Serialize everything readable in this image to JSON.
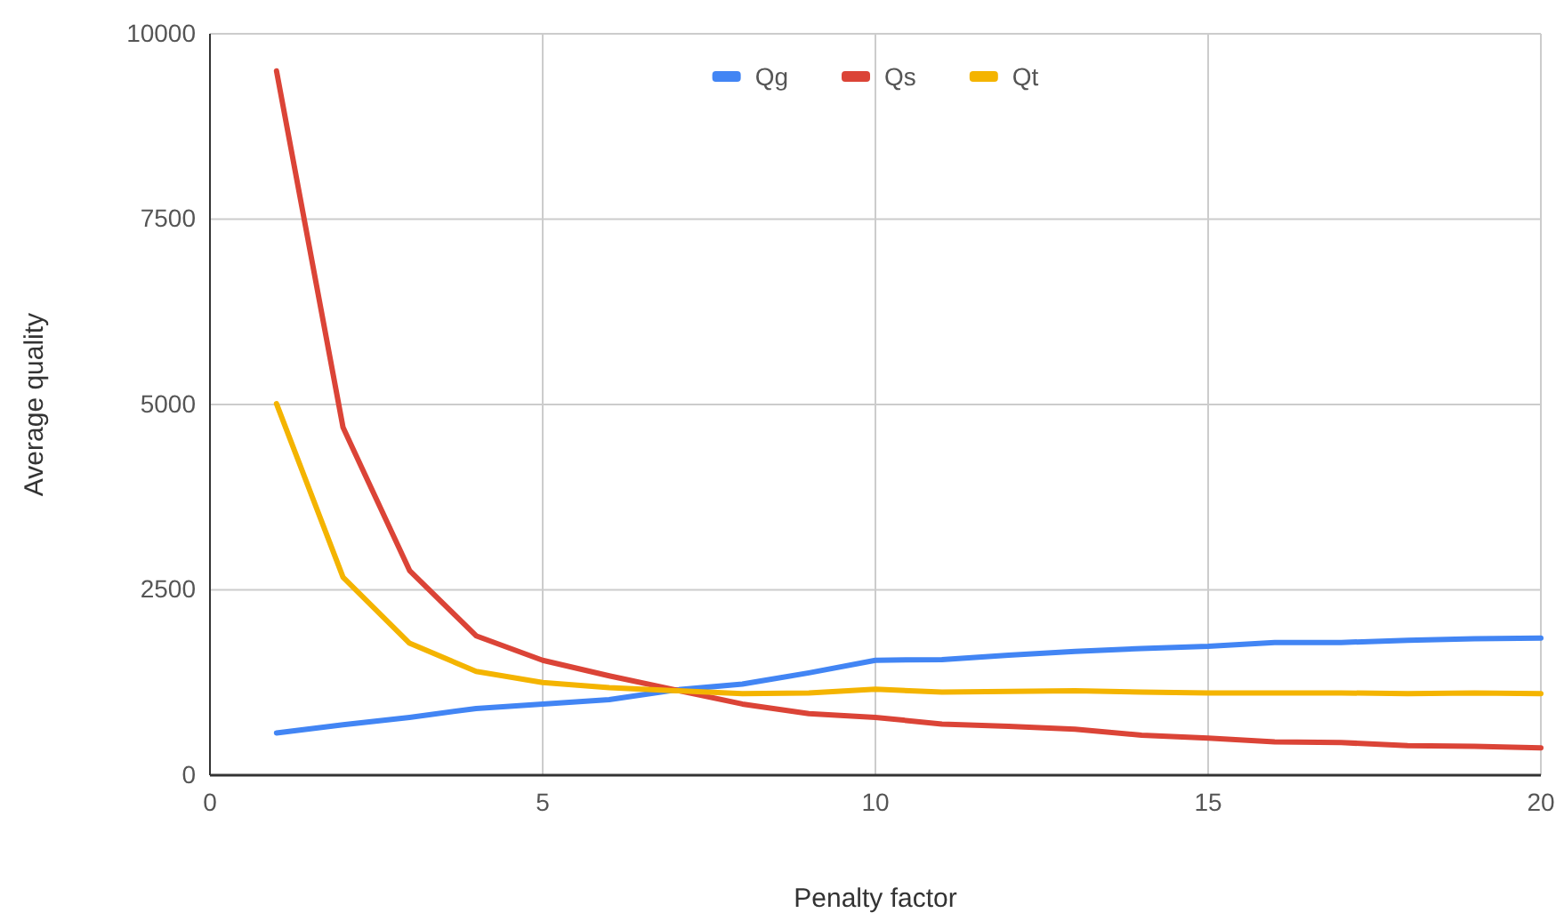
{
  "chart_data": {
    "type": "line",
    "xlabel": "Penalty factor",
    "ylabel": "Average quality",
    "x": [
      1,
      2,
      3,
      4,
      5,
      6,
      7,
      8,
      9,
      10,
      11,
      12,
      13,
      14,
      15,
      16,
      17,
      18,
      19,
      20
    ],
    "series": [
      {
        "name": "Qg",
        "color": "#4285f4",
        "values": [
          570,
          680,
          780,
          900,
          960,
          1020,
          1150,
          1230,
          1380,
          1550,
          1560,
          1620,
          1670,
          1710,
          1740,
          1790,
          1790,
          1820,
          1840,
          1850
        ]
      },
      {
        "name": "Qs",
        "color": "#db4437",
        "values": [
          9500,
          4690,
          2760,
          1880,
          1550,
          1340,
          1150,
          960,
          830,
          780,
          690,
          660,
          620,
          540,
          500,
          450,
          440,
          400,
          390,
          370
        ]
      },
      {
        "name": "Qt",
        "color": "#f4b400",
        "values": [
          5010,
          2670,
          1780,
          1400,
          1250,
          1180,
          1140,
          1100,
          1110,
          1160,
          1120,
          1130,
          1140,
          1120,
          1110,
          1110,
          1110,
          1100,
          1110,
          1100
        ]
      }
    ],
    "xlim": [
      0,
      20
    ],
    "xticks": [
      0,
      5,
      10,
      15,
      20
    ],
    "ylim": [
      0,
      10000
    ],
    "yticks": [
      0,
      2500,
      5000,
      7500,
      10000
    ],
    "grid": true,
    "legend": "top",
    "line_style": "solid",
    "marker": "none"
  }
}
